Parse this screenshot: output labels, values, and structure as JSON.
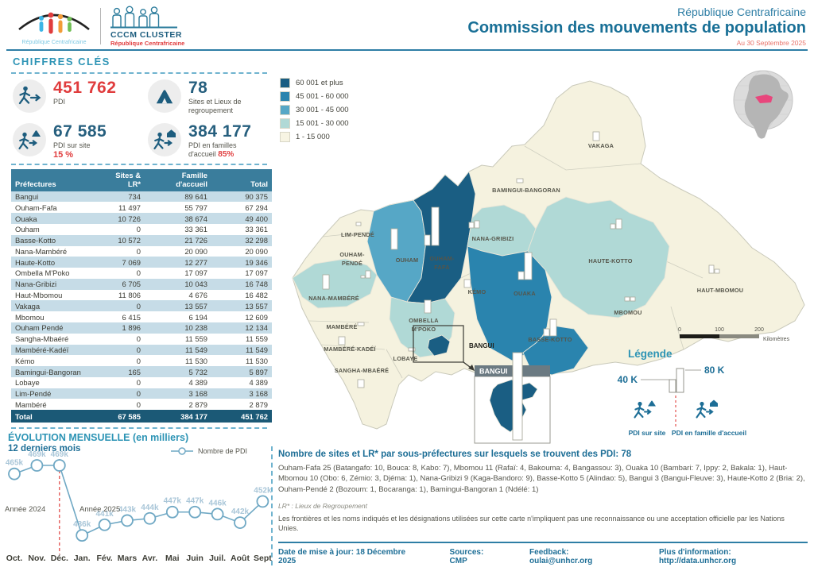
{
  "logos": {
    "rca_caption": "République Centrafricaine",
    "cccm_title": "CCCM CLUSTER",
    "cccm_subtitle": "République Centrafricaine"
  },
  "header": {
    "country": "République Centrafricaine",
    "title": "Commission des mouvements de population",
    "date": "Au 30 Septembre 2025"
  },
  "key_figures": {
    "section_title": "CHIFFRES CLÉS",
    "pdi": {
      "value": "451 762",
      "label": "PDI"
    },
    "sites": {
      "value": "78",
      "label_l1": "Sites et Lieux de",
      "label_l2": "regroupement"
    },
    "pdi_site": {
      "value": "67 585",
      "label": "PDI sur site",
      "pct": "15 %"
    },
    "pdi_famille": {
      "value": "384 177",
      "label_l1": "PDI en familles",
      "label_l2": "d'accueil",
      "pct": "85%"
    }
  },
  "table": {
    "col_headers": [
      "Préfectures",
      "Sites & LR*",
      "Famille d'accueil",
      "Total"
    ],
    "rows": [
      [
        "Bangui",
        "734",
        "89 641",
        "90 375"
      ],
      [
        "Ouham-Fafa",
        "11 497",
        "55 797",
        "67 294"
      ],
      [
        "Ouaka",
        "10 726",
        "38 674",
        "49 400"
      ],
      [
        "Ouham",
        "0",
        "33 361",
        "33 361"
      ],
      [
        "Basse-Kotto",
        "10 572",
        "21 726",
        "32 298"
      ],
      [
        "Nana-Mambéré",
        "0",
        "20 090",
        "20 090"
      ],
      [
        "Haute-Kotto",
        "7 069",
        "12 277",
        "19 346"
      ],
      [
        "Ombella M'Poko",
        "0",
        "17 097",
        "17 097"
      ],
      [
        "Nana-Gribizi",
        "6 705",
        "10 043",
        "16 748"
      ],
      [
        "Haut-Mbomou",
        "11 806",
        "4 676",
        "16 482"
      ],
      [
        "Vakaga",
        "0",
        "13 557",
        "13 557"
      ],
      [
        "Mbomou",
        "6 415",
        "6 194",
        "12 609"
      ],
      [
        "Ouham Pendé",
        "1 896",
        "10 238",
        "12 134"
      ],
      [
        "Sangha-Mbaéré",
        "0",
        "11 559",
        "11 559"
      ],
      [
        "Mambéré-Kadéï",
        "0",
        "11 549",
        "11 549"
      ],
      [
        "Kémo",
        "0",
        "11 530",
        "11 530"
      ],
      [
        "Bamingui-Bangoran",
        "165",
        "5 732",
        "5 897"
      ],
      [
        "Lobaye",
        "0",
        "4 389",
        "4 389"
      ],
      [
        "Lim-Pendé",
        "0",
        "3 168",
        "3 168"
      ],
      [
        "Mambéré",
        "0",
        "2 879",
        "2 879"
      ]
    ],
    "total_row": [
      "Total",
      "67 585",
      "384 177",
      "451 762"
    ]
  },
  "map": {
    "choropleth_legend": [
      {
        "label": "60 001 et plus",
        "color": "#1a5e83"
      },
      {
        "label": "45 001 - 60 000",
        "color": "#2a84ae"
      },
      {
        "label": "30 001 - 45 000",
        "color": "#56a7c6"
      },
      {
        "label": "15 001 - 30 000",
        "color": "#b0d9d6"
      },
      {
        "label": "1 - 15 000",
        "color": "#f7f4e3"
      }
    ],
    "region_labels": {
      "lim_pende": "LIM-PENDÉ",
      "ouham_pende_l1": "OUHAM-",
      "ouham_pende_l2": "PENDÉ",
      "ouham": "OUHAM",
      "ouham_fafa_l1": "OUHAM-",
      "ouham_fafa_l2": "FAFA",
      "nana_gribizi": "NANA-GRIBIZI",
      "bamingui_bangoran": "BAMINGUI-BANGORAN",
      "vakaga": "VAKAGA",
      "haute_kotto": "HAUTE-KOTTO",
      "haut_mbomou": "HAUT-MBOMOU",
      "mbomou": "MBOMOU",
      "basse_kotto": "BASSE-KOTTO",
      "ouaka": "OUAKA",
      "kemo": "KÉMO",
      "nana_mambere": "NANA-MAMBÉRÉ",
      "mambere": "MAMBÉRÉ",
      "mambere_kadei": "MAMBÉRÉ-KADÉÏ",
      "sangha_mbaere": "SANGHA-MBAÉRÉ",
      "lobaye": "LOBAYE",
      "ombella_l1": "OMBELLA",
      "ombella_l2": "M'POKO"
    },
    "bangui_label": "BANGUI",
    "inset_title": "BANGUI",
    "scale": {
      "ticks": [
        "0",
        "100",
        "200"
      ],
      "unit": "Kilomètres"
    },
    "legend_title": "Légende",
    "bar_legend": {
      "small": "40 K",
      "large": "80 K"
    },
    "icon_legend": [
      {
        "label": "PDI sur site"
      },
      {
        "label": "PDI en famille d'accueil"
      }
    ]
  },
  "chart_data": {
    "type": "line",
    "title": "ÉVOLUTION MENSUELLE (en milliers)",
    "subtitle": "12 derniers mois",
    "legend": [
      "Nombre de PDI"
    ],
    "x": [
      "Oct.",
      "Nov.",
      "Déc.",
      "Jan.",
      "Fév.",
      "Mars",
      "Avr.",
      "Mai",
      "Juin",
      "Juil.",
      "Août",
      "Sept"
    ],
    "values_thousands": [
      465,
      469,
      469,
      436,
      441,
      443,
      444,
      447,
      447,
      446,
      442,
      452
    ],
    "point_labels": [
      "465k",
      "469k",
      "469k",
      "436k",
      "441k",
      "443k",
      "444k",
      "447k",
      "447k",
      "446k",
      "442k",
      "452k"
    ],
    "annotations": [
      "Année 2024",
      "Année 2025"
    ],
    "ylim": [
      430,
      475
    ],
    "grid": false,
    "legend_position": "top-right",
    "year_divider_after_index": 2
  },
  "notes": {
    "sites_title": "Nombre de sites et LR* par sous-préfectures sur lesquels se trouvent des PDI: 78",
    "sites_detail": "Ouham-Fafa 25 (Batangafo: 10, Bouca: 8, Kabo: 7), Mbomou 11 (Rafaï: 4, Bakouma: 4, Bangassou: 3), Ouaka 10 (Bambari: 7, Ippy: 2, Bakala: 1), Haut-Mbomou 10 (Obo: 6, Zémio: 3, Djéma: 1), Nana-Gribizi 9 (Kaga-Bandoro: 9), Basse-Kotto 5 (Alindao: 5), Bangui 3 (Bangui-Fleuve: 3), Haute-Kotto 2 (Bria: 2), Ouham-Pendé 2 (Bozoum: 1, Bocaranga: 1), Bamingui-Bangoran 1 (Ndélé: 1)",
    "lr_note": "LR* : Lieux de Regroupement",
    "disclaimer": "Les frontières et les noms indiqués et les désignations utilisées sur cette carte n'impliquent pas une reconnaissance ou une acceptation officielle par les Nations Unies."
  },
  "footer": {
    "updated": "Date de mise à jour:  18 Décembre 2025",
    "sources": "Sources: CMP",
    "feedback": "Feedback: oulai@unhcr.org",
    "info": "Plus d'information: http://data.unhcr.org"
  }
}
